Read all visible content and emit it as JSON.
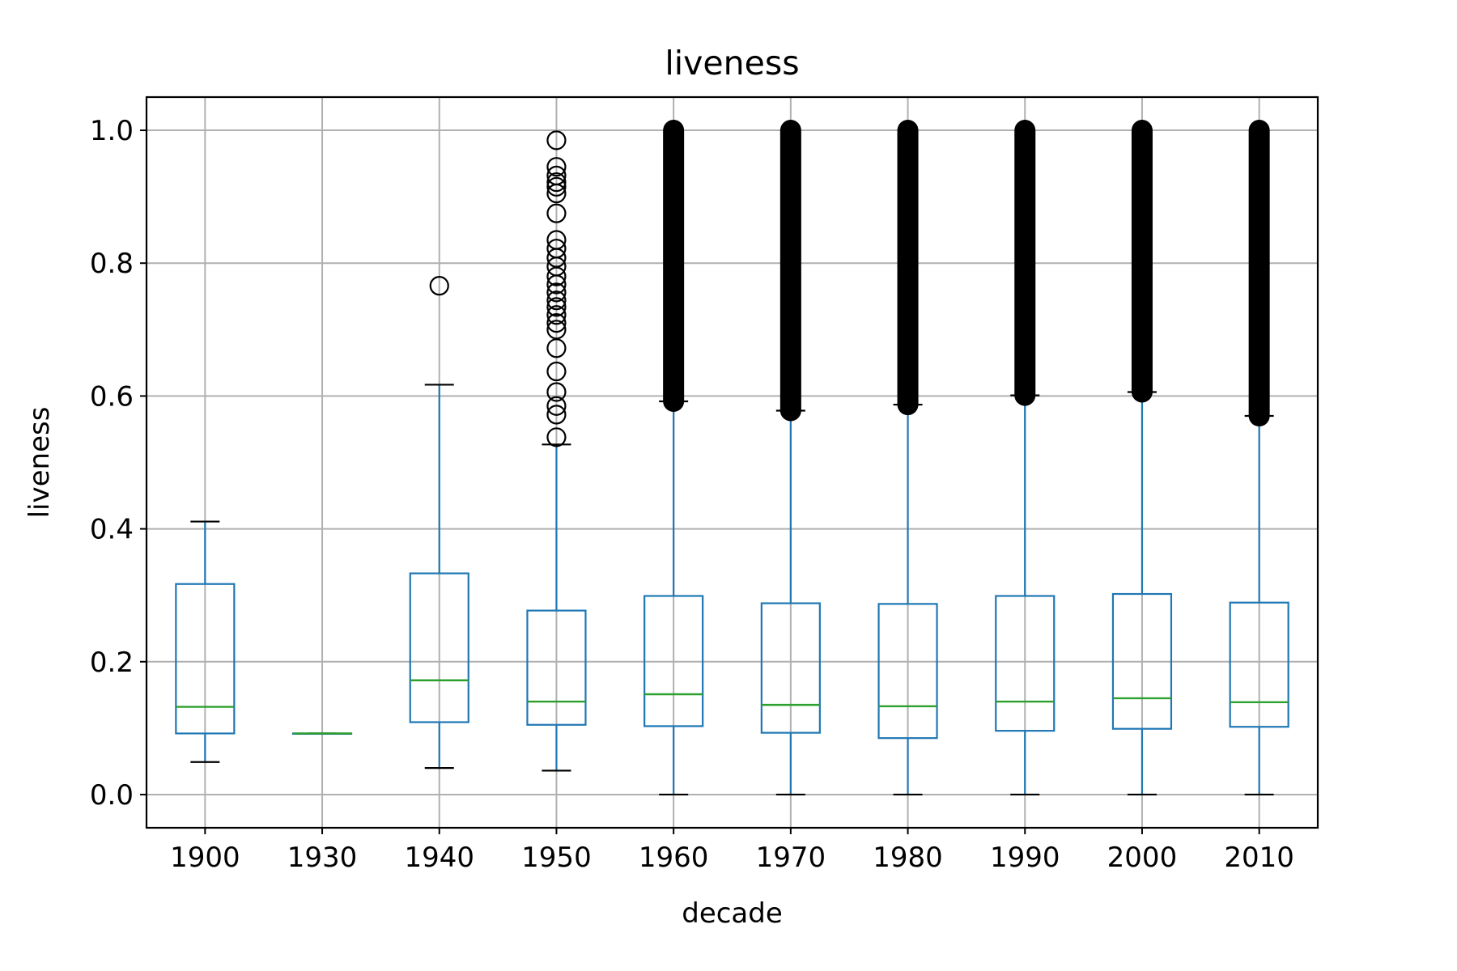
{
  "chart_data": {
    "type": "box",
    "title": "liveness",
    "xlabel": "decade",
    "ylabel": "liveness",
    "ylim": [
      -0.05,
      1.05
    ],
    "yticks": [
      0.0,
      0.2,
      0.4,
      0.6,
      0.8,
      1.0
    ],
    "ytick_labels": [
      "0.0",
      "0.2",
      "0.4",
      "0.6",
      "0.8",
      "1.0"
    ],
    "grid": true,
    "legend": "none",
    "colors": {
      "box": "#1f77b4",
      "median": "#2ca02c",
      "whisker_cap": "#000000",
      "flier": "#000000",
      "grid": "#b0b0b0"
    },
    "categories": [
      "1900",
      "1930",
      "1940",
      "1950",
      "1960",
      "1970",
      "1980",
      "1990",
      "2000",
      "2010"
    ],
    "boxes": [
      {
        "label": "1900",
        "whislo": 0.049,
        "q1": 0.092,
        "med": 0.132,
        "q3": 0.317,
        "whishi": 0.411,
        "fliers": []
      },
      {
        "label": "1930",
        "whislo": 0.092,
        "q1": 0.092,
        "med": 0.092,
        "q3": 0.092,
        "whishi": 0.092,
        "fliers": []
      },
      {
        "label": "1940",
        "whislo": 0.04,
        "q1": 0.109,
        "med": 0.172,
        "q3": 0.333,
        "whishi": 0.617,
        "fliers": [
          0.766
        ]
      },
      {
        "label": "1950",
        "whislo": 0.036,
        "q1": 0.105,
        "med": 0.14,
        "q3": 0.277,
        "whishi": 0.527,
        "fliers": [
          0.538,
          0.572,
          0.585,
          0.606,
          0.637,
          0.672,
          0.7,
          0.71,
          0.722,
          0.734,
          0.744,
          0.756,
          0.768,
          0.78,
          0.795,
          0.808,
          0.822,
          0.835,
          0.875,
          0.905,
          0.915,
          0.922,
          0.932,
          0.945,
          0.985
        ]
      },
      {
        "label": "1960",
        "whislo": 0.0,
        "q1": 0.103,
        "med": 0.151,
        "q3": 0.299,
        "whishi": 0.592,
        "fliers_range": [
          0.592,
          1.0
        ]
      },
      {
        "label": "1970",
        "whislo": 0.0,
        "q1": 0.093,
        "med": 0.135,
        "q3": 0.288,
        "whishi": 0.578,
        "fliers_range": [
          0.578,
          1.0
        ]
      },
      {
        "label": "1980",
        "whislo": 0.0,
        "q1": 0.085,
        "med": 0.133,
        "q3": 0.287,
        "whishi": 0.587,
        "fliers_range": [
          0.587,
          1.0
        ]
      },
      {
        "label": "1990",
        "whislo": 0.0,
        "q1": 0.096,
        "med": 0.14,
        "q3": 0.299,
        "whishi": 0.601,
        "fliers_range": [
          0.601,
          1.0
        ]
      },
      {
        "label": "2000",
        "whislo": 0.0,
        "q1": 0.099,
        "med": 0.145,
        "q3": 0.302,
        "whishi": 0.606,
        "fliers_range": [
          0.606,
          1.0
        ]
      },
      {
        "label": "2010",
        "whislo": 0.0,
        "q1": 0.102,
        "med": 0.139,
        "q3": 0.289,
        "whishi": 0.57,
        "fliers_range": [
          0.57,
          1.0
        ]
      }
    ]
  }
}
